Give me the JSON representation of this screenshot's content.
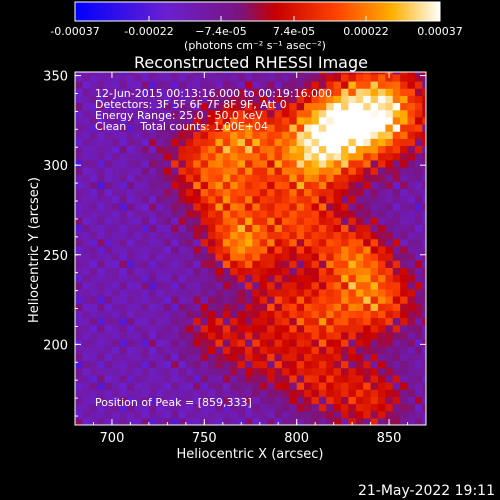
{
  "chart_data": {
    "type": "heatmap",
    "title": "Reconstructed RHESSI Image",
    "xlabel": "Heliocentric X (arcsec)",
    "ylabel": "Heliocentric Y (arcsec)",
    "xlim": [
      680,
      870
    ],
    "ylim": [
      155,
      352
    ],
    "x_ticks": [
      700,
      750,
      800,
      850
    ],
    "y_ticks": [
      200,
      250,
      300,
      350
    ],
    "colorbar": {
      "min": -0.00037,
      "max": 0.00037,
      "tick_values": [
        -0.00037,
        -0.00022,
        -7.4e-05,
        7.4e-05,
        0.00022,
        0.00037
      ],
      "tick_labels": [
        "-0.00037",
        "-0.00022",
        "−7.4e-05",
        "7.4e-05",
        "0.00022",
        "0.00037"
      ],
      "units": "(photons cm⁻² s⁻¹ asec⁻²)",
      "colormap": "blue-purple-red-yellow-white"
    },
    "annotations": [
      "12-Jun-2015 00:13:16.000 to 00:19:16.000",
      "Detectors: 3F 5F 6F 7F 8F 9F, Att 0",
      "Energy Range: 25.0 - 50.0 keV",
      "Clean    Total counts: 1.00E+04"
    ],
    "peak_label": "Position of Peak = [859,333]",
    "peak": [
      859,
      333
    ],
    "grid_step_arcsec": 4,
    "emission_blobs": [
      {
        "x": 845,
        "y": 330,
        "amp": 1.0,
        "r": 18
      },
      {
        "x": 818,
        "y": 320,
        "amp": 0.75,
        "r": 16
      },
      {
        "x": 805,
        "y": 300,
        "amp": 0.55,
        "r": 18
      },
      {
        "x": 770,
        "y": 318,
        "amp": 0.6,
        "r": 14
      },
      {
        "x": 762,
        "y": 283,
        "amp": 0.55,
        "r": 16
      },
      {
        "x": 770,
        "y": 254,
        "amp": 0.65,
        "r": 12
      },
      {
        "x": 745,
        "y": 305,
        "amp": 0.35,
        "r": 14
      },
      {
        "x": 800,
        "y": 265,
        "amp": 0.45,
        "r": 14
      },
      {
        "x": 830,
        "y": 250,
        "amp": 0.6,
        "r": 14
      },
      {
        "x": 845,
        "y": 225,
        "amp": 0.6,
        "r": 15
      },
      {
        "x": 815,
        "y": 215,
        "amp": 0.5,
        "r": 14
      },
      {
        "x": 790,
        "y": 225,
        "amp": 0.35,
        "r": 12
      },
      {
        "x": 780,
        "y": 195,
        "amp": 0.35,
        "r": 14
      },
      {
        "x": 755,
        "y": 208,
        "amp": 0.35,
        "r": 12
      },
      {
        "x": 810,
        "y": 180,
        "amp": 0.4,
        "r": 14
      },
      {
        "x": 840,
        "y": 170,
        "amp": 0.45,
        "r": 14
      }
    ]
  },
  "footer": {
    "date": "21-May-2022 19:11"
  }
}
